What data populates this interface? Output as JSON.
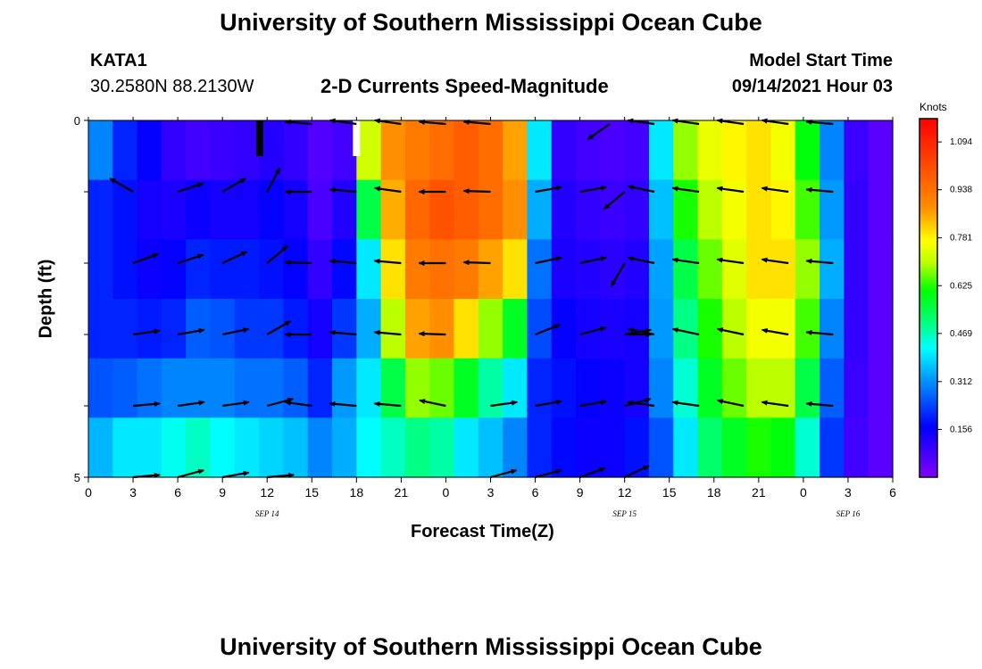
{
  "page": {
    "title": "University of Southern Mississippi Ocean Cube",
    "footer_title": "University of Southern Mississippi Ocean Cube",
    "station_id": "KATA1",
    "coordinates": "30.2580N  88.2130W",
    "plot_title": "2-D Currents Speed-Magnitude",
    "model_start_label": "Model Start Time",
    "model_start_value": "09/14/2021 Hour 03",
    "colorbar_units": "Knots"
  },
  "chart_data": {
    "type": "heatmap",
    "title": "2-D Currents Speed-Magnitude",
    "xlabel": "Forecast Time(Z)",
    "ylabel": "Depth (ft)",
    "x_range_hours": [
      0,
      54
    ],
    "y_range_ft": [
      0,
      5
    ],
    "y_ticks": [
      "0",
      "5"
    ],
    "x_tick_labels": [
      "0",
      "3",
      "6",
      "9",
      "12",
      "15",
      "18",
      "21",
      "0",
      "3",
      "6",
      "9",
      "12",
      "15",
      "18",
      "21",
      "0",
      "3",
      "6"
    ],
    "date_labels": [
      {
        "text": "SEP 14",
        "hour": 12
      },
      {
        "text": "SEP 15",
        "hour": 36
      },
      {
        "text": "SEP 16",
        "hour": 51
      }
    ],
    "colorbar": {
      "units": "Knots",
      "min": 0,
      "max": 1.17,
      "ticks": [
        "1.094",
        "0.938",
        "0.781",
        "0.625",
        "0.469",
        "0.312",
        "0.156"
      ]
    },
    "columns_speed_knots": [
      [
        0.3,
        0.2,
        0.2,
        0.2,
        0.25,
        0.35
      ],
      [
        0.2,
        0.18,
        0.18,
        0.2,
        0.26,
        0.4
      ],
      [
        0.16,
        0.14,
        0.15,
        0.19,
        0.28,
        0.4
      ],
      [
        0.1,
        0.13,
        0.16,
        0.2,
        0.3,
        0.43
      ],
      [
        0.08,
        0.15,
        0.2,
        0.26,
        0.3,
        0.46
      ],
      [
        0.09,
        0.14,
        0.19,
        0.25,
        0.3,
        0.42
      ],
      [
        0.1,
        0.14,
        0.19,
        0.22,
        0.28,
        0.4
      ],
      [
        0.12,
        0.16,
        0.18,
        0.22,
        0.28,
        0.38
      ],
      [
        0.1,
        0.14,
        0.16,
        0.19,
        0.26,
        0.36
      ],
      [
        0.06,
        0.07,
        0.1,
        0.14,
        0.2,
        0.3
      ],
      [
        0.08,
        0.12,
        0.17,
        0.22,
        0.32,
        0.34
      ],
      [
        0.72,
        0.55,
        0.4,
        0.34,
        0.4,
        0.42
      ],
      [
        0.88,
        0.85,
        0.8,
        0.7,
        0.55,
        0.46
      ],
      [
        0.92,
        0.96,
        0.92,
        0.86,
        0.68,
        0.5
      ],
      [
        0.95,
        1.0,
        0.94,
        0.88,
        0.66,
        0.48
      ],
      [
        0.98,
        0.98,
        0.92,
        0.8,
        0.58,
        0.4
      ],
      [
        0.95,
        0.95,
        0.86,
        0.68,
        0.48,
        0.36
      ],
      [
        0.86,
        0.88,
        0.8,
        0.58,
        0.4,
        0.3
      ],
      [
        0.4,
        0.34,
        0.28,
        0.24,
        0.2,
        0.2
      ],
      [
        0.1,
        0.12,
        0.13,
        0.16,
        0.18,
        0.17
      ],
      [
        0.08,
        0.1,
        0.12,
        0.14,
        0.16,
        0.15
      ],
      [
        0.07,
        0.09,
        0.11,
        0.13,
        0.15,
        0.15
      ],
      [
        0.08,
        0.1,
        0.12,
        0.14,
        0.14,
        0.18
      ],
      [
        0.4,
        0.36,
        0.33,
        0.32,
        0.3,
        0.25
      ],
      [
        0.68,
        0.62,
        0.55,
        0.5,
        0.45,
        0.4
      ],
      [
        0.75,
        0.7,
        0.66,
        0.62,
        0.58,
        0.52
      ],
      [
        0.78,
        0.76,
        0.74,
        0.7,
        0.66,
        0.58
      ],
      [
        0.8,
        0.8,
        0.8,
        0.76,
        0.7,
        0.62
      ],
      [
        0.76,
        0.78,
        0.8,
        0.76,
        0.7,
        0.6
      ],
      [
        0.6,
        0.64,
        0.68,
        0.64,
        0.55,
        0.45
      ],
      [
        0.3,
        0.32,
        0.34,
        0.3,
        0.26,
        0.22
      ],
      [
        0.09,
        0.1,
        0.1,
        0.1,
        0.09,
        0.08
      ],
      [
        0.05,
        0.05,
        0.05,
        0.05,
        0.05,
        0.05
      ]
    ],
    "vectors": [
      {
        "hour": 3,
        "depth_ft": 1,
        "speed": 0.4,
        "dir_deg": 150
      },
      {
        "hour": 6,
        "depth_ft": 1,
        "speed": 0.4,
        "dir_deg": 18
      },
      {
        "hour": 9,
        "depth_ft": 1,
        "speed": 0.4,
        "dir_deg": 30
      },
      {
        "hour": 12,
        "depth_ft": 1,
        "speed": 0.4,
        "dir_deg": 62
      },
      {
        "hour": 15,
        "depth_ft": 0.05,
        "speed": 0.4,
        "dir_deg": 175
      },
      {
        "hour": 18,
        "depth_ft": 0.05,
        "speed": 0.4,
        "dir_deg": 172
      },
      {
        "hour": 21,
        "depth_ft": 0.05,
        "speed": 0.4,
        "dir_deg": 172
      },
      {
        "hour": 24,
        "depth_ft": 0.05,
        "speed": 0.4,
        "dir_deg": 175
      },
      {
        "hour": 27,
        "depth_ft": 0.05,
        "speed": 0.4,
        "dir_deg": 175
      },
      {
        "hour": 35,
        "depth_ft": 0.05,
        "speed": 0.4,
        "dir_deg": 215
      },
      {
        "hour": 38,
        "depth_ft": 0.05,
        "speed": 0.4,
        "dir_deg": 172
      },
      {
        "hour": 41,
        "depth_ft": 0.05,
        "speed": 0.4,
        "dir_deg": 172
      },
      {
        "hour": 44,
        "depth_ft": 0.05,
        "speed": 0.4,
        "dir_deg": 172
      },
      {
        "hour": 47,
        "depth_ft": 0.05,
        "speed": 0.4,
        "dir_deg": 172
      },
      {
        "hour": 50,
        "depth_ft": 0.05,
        "speed": 0.4,
        "dir_deg": 175
      },
      {
        "hour": 15,
        "depth_ft": 1,
        "speed": 0.4,
        "dir_deg": 180
      },
      {
        "hour": 18,
        "depth_ft": 1,
        "speed": 0.4,
        "dir_deg": 175
      },
      {
        "hour": 21,
        "depth_ft": 1,
        "speed": 0.4,
        "dir_deg": 172
      },
      {
        "hour": 24,
        "depth_ft": 1,
        "speed": 0.4,
        "dir_deg": 180
      },
      {
        "hour": 27,
        "depth_ft": 1,
        "speed": 0.4,
        "dir_deg": 178
      },
      {
        "hour": 30,
        "depth_ft": 1,
        "speed": 0.4,
        "dir_deg": 10
      },
      {
        "hour": 33,
        "depth_ft": 1,
        "speed": 0.4,
        "dir_deg": 10
      },
      {
        "hour": 36,
        "depth_ft": 1,
        "speed": 0.4,
        "dir_deg": 220
      },
      {
        "hour": 38,
        "depth_ft": 1,
        "speed": 0.4,
        "dir_deg": 168
      },
      {
        "hour": 41,
        "depth_ft": 1,
        "speed": 0.4,
        "dir_deg": 172
      },
      {
        "hour": 44,
        "depth_ft": 1,
        "speed": 0.4,
        "dir_deg": 172
      },
      {
        "hour": 47,
        "depth_ft": 1,
        "speed": 0.4,
        "dir_deg": 172
      },
      {
        "hour": 50,
        "depth_ft": 1,
        "speed": 0.4,
        "dir_deg": 175
      },
      {
        "hour": 3,
        "depth_ft": 2,
        "speed": 0.4,
        "dir_deg": 20
      },
      {
        "hour": 6,
        "depth_ft": 2,
        "speed": 0.4,
        "dir_deg": 18
      },
      {
        "hour": 9,
        "depth_ft": 2,
        "speed": 0.4,
        "dir_deg": 25
      },
      {
        "hour": 12,
        "depth_ft": 2,
        "speed": 0.4,
        "dir_deg": 40
      },
      {
        "hour": 15,
        "depth_ft": 2,
        "speed": 0.4,
        "dir_deg": 178
      },
      {
        "hour": 18,
        "depth_ft": 2,
        "speed": 0.4,
        "dir_deg": 175
      },
      {
        "hour": 21,
        "depth_ft": 2,
        "speed": 0.4,
        "dir_deg": 175
      },
      {
        "hour": 24,
        "depth_ft": 2,
        "speed": 0.4,
        "dir_deg": 180
      },
      {
        "hour": 27,
        "depth_ft": 2,
        "speed": 0.4,
        "dir_deg": 178
      },
      {
        "hour": 30,
        "depth_ft": 2,
        "speed": 0.4,
        "dir_deg": 12
      },
      {
        "hour": 33,
        "depth_ft": 2,
        "speed": 0.4,
        "dir_deg": 12
      },
      {
        "hour": 36,
        "depth_ft": 2,
        "speed": 0.4,
        "dir_deg": 240
      },
      {
        "hour": 38,
        "depth_ft": 2,
        "speed": 0.4,
        "dir_deg": 168
      },
      {
        "hour": 41,
        "depth_ft": 2,
        "speed": 0.4,
        "dir_deg": 172
      },
      {
        "hour": 44,
        "depth_ft": 2,
        "speed": 0.4,
        "dir_deg": 172
      },
      {
        "hour": 47,
        "depth_ft": 2,
        "speed": 0.4,
        "dir_deg": 172
      },
      {
        "hour": 50,
        "depth_ft": 2,
        "speed": 0.4,
        "dir_deg": 175
      },
      {
        "hour": 3,
        "depth_ft": 3,
        "speed": 0.4,
        "dir_deg": 8
      },
      {
        "hour": 6,
        "depth_ft": 3,
        "speed": 0.4,
        "dir_deg": 10
      },
      {
        "hour": 9,
        "depth_ft": 3,
        "speed": 0.4,
        "dir_deg": 12
      },
      {
        "hour": 12,
        "depth_ft": 3,
        "speed": 0.4,
        "dir_deg": 30
      },
      {
        "hour": 15,
        "depth_ft": 3,
        "speed": 0.4,
        "dir_deg": 180
      },
      {
        "hour": 18,
        "depth_ft": 3,
        "speed": 0.4,
        "dir_deg": 175
      },
      {
        "hour": 21,
        "depth_ft": 3,
        "speed": 0.4,
        "dir_deg": 175
      },
      {
        "hour": 24,
        "depth_ft": 3,
        "speed": 0.4,
        "dir_deg": 178
      },
      {
        "hour": 30,
        "depth_ft": 3,
        "speed": 0.4,
        "dir_deg": 22
      },
      {
        "hour": 33,
        "depth_ft": 3,
        "speed": 0.4,
        "dir_deg": 15
      },
      {
        "hour": 36,
        "depth_ft": 3,
        "speed": 0.4,
        "dir_deg": 10
      },
      {
        "hour": 36,
        "depth_ft": 3,
        "speed": 0.4,
        "dir_deg": 0
      },
      {
        "hour": 38,
        "depth_ft": 3,
        "speed": 0.4,
        "dir_deg": 168
      },
      {
        "hour": 41,
        "depth_ft": 3,
        "speed": 0.4,
        "dir_deg": 168
      },
      {
        "hour": 44,
        "depth_ft": 3,
        "speed": 0.4,
        "dir_deg": 168
      },
      {
        "hour": 47,
        "depth_ft": 3,
        "speed": 0.4,
        "dir_deg": 170
      },
      {
        "hour": 50,
        "depth_ft": 3,
        "speed": 0.4,
        "dir_deg": 175
      },
      {
        "hour": 3,
        "depth_ft": 4,
        "speed": 0.4,
        "dir_deg": 5
      },
      {
        "hour": 6,
        "depth_ft": 4,
        "speed": 0.4,
        "dir_deg": 8
      },
      {
        "hour": 9,
        "depth_ft": 4,
        "speed": 0.4,
        "dir_deg": 8
      },
      {
        "hour": 12,
        "depth_ft": 4,
        "speed": 0.4,
        "dir_deg": 15
      },
      {
        "hour": 15,
        "depth_ft": 4,
        "speed": 0.4,
        "dir_deg": 172
      },
      {
        "hour": 18,
        "depth_ft": 4,
        "speed": 0.4,
        "dir_deg": 175
      },
      {
        "hour": 21,
        "depth_ft": 4,
        "speed": 0.4,
        "dir_deg": 175
      },
      {
        "hour": 24,
        "depth_ft": 4,
        "speed": 0.4,
        "dir_deg": 168
      },
      {
        "hour": 27,
        "depth_ft": 4,
        "speed": 0.4,
        "dir_deg": 8
      },
      {
        "hour": 30,
        "depth_ft": 4,
        "speed": 0.4,
        "dir_deg": 10
      },
      {
        "hour": 33,
        "depth_ft": 4,
        "speed": 0.4,
        "dir_deg": 10
      },
      {
        "hour": 36,
        "depth_ft": 4,
        "speed": 0.4,
        "dir_deg": 15
      },
      {
        "hour": 38,
        "depth_ft": 4,
        "speed": 0.4,
        "dir_deg": 172
      },
      {
        "hour": 41,
        "depth_ft": 4,
        "speed": 0.4,
        "dir_deg": 172
      },
      {
        "hour": 44,
        "depth_ft": 4,
        "speed": 0.4,
        "dir_deg": 168
      },
      {
        "hour": 47,
        "depth_ft": 4,
        "speed": 0.4,
        "dir_deg": 172
      },
      {
        "hour": 50,
        "depth_ft": 4,
        "speed": 0.4,
        "dir_deg": 175
      },
      {
        "hour": 3,
        "depth_ft": 5,
        "speed": 0.4,
        "dir_deg": 5
      },
      {
        "hour": 6,
        "depth_ft": 5,
        "speed": 0.4,
        "dir_deg": 15
      },
      {
        "hour": 9,
        "depth_ft": 5,
        "speed": 0.4,
        "dir_deg": 10
      },
      {
        "hour": 12,
        "depth_ft": 5,
        "speed": 0.4,
        "dir_deg": 5
      },
      {
        "hour": 27,
        "depth_ft": 5,
        "speed": 0.4,
        "dir_deg": 15
      },
      {
        "hour": 30,
        "depth_ft": 5,
        "speed": 0.4,
        "dir_deg": 15
      },
      {
        "hour": 33,
        "depth_ft": 5,
        "speed": 0.4,
        "dir_deg": 20
      },
      {
        "hour": 36,
        "depth_ft": 5,
        "speed": 0.4,
        "dir_deg": 25
      }
    ],
    "markers": [
      {
        "hour": 11.5,
        "color": "#000000"
      },
      {
        "hour": 18,
        "color": "#ffffff"
      }
    ]
  }
}
